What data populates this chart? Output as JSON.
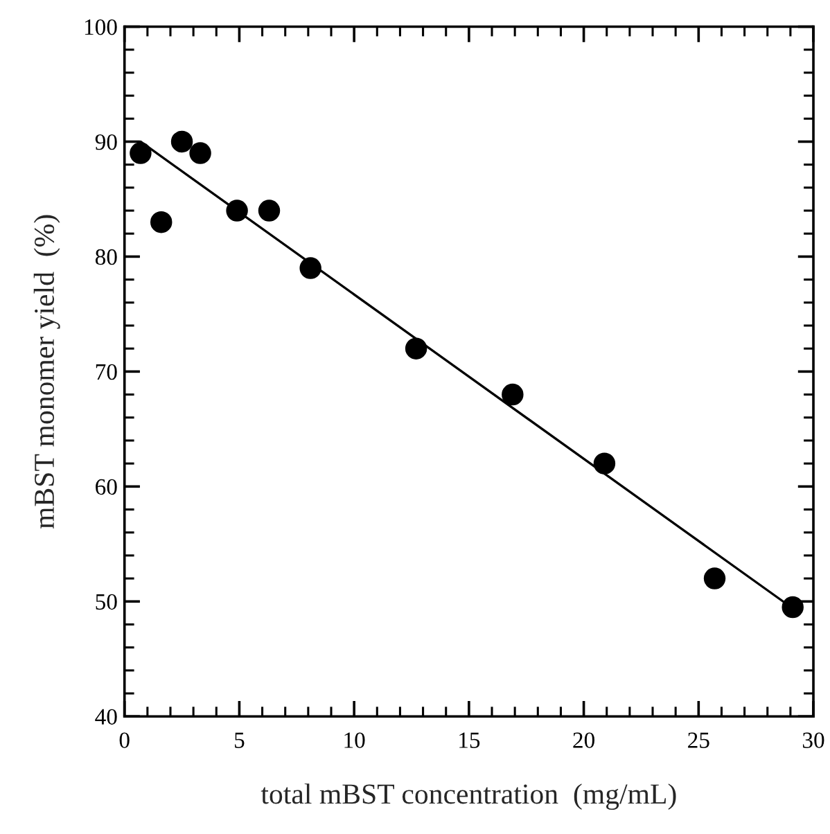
{
  "chart_data": {
    "type": "scatter",
    "xlabel": "total mBST concentration  (mg/mL)",
    "ylabel": "mBST monomer yield  (%)",
    "xlim": [
      0,
      30
    ],
    "xticks": [
      0,
      5,
      10,
      15,
      20,
      25,
      30
    ],
    "ylim": [
      40,
      100
    ],
    "yticks": [
      40,
      50,
      60,
      70,
      80,
      90,
      100
    ],
    "marker": "circle",
    "grid": false,
    "series": [
      {
        "type": "scatter",
        "color": "#000000",
        "x": [
          0.7,
          1.6,
          2.5,
          3.3,
          4.9,
          6.3,
          8.1,
          12.7,
          16.9,
          20.9,
          25.7,
          29.1
        ],
        "values": [
          89,
          83,
          90,
          89,
          84,
          84,
          79,
          72,
          68,
          62,
          52,
          49.5
        ]
      },
      {
        "type": "line",
        "color": "#000000",
        "line_style": "solid",
        "marker": "none",
        "x": [
          0.7,
          29.1
        ],
        "values": [
          90,
          49.4
        ]
      }
    ]
  }
}
